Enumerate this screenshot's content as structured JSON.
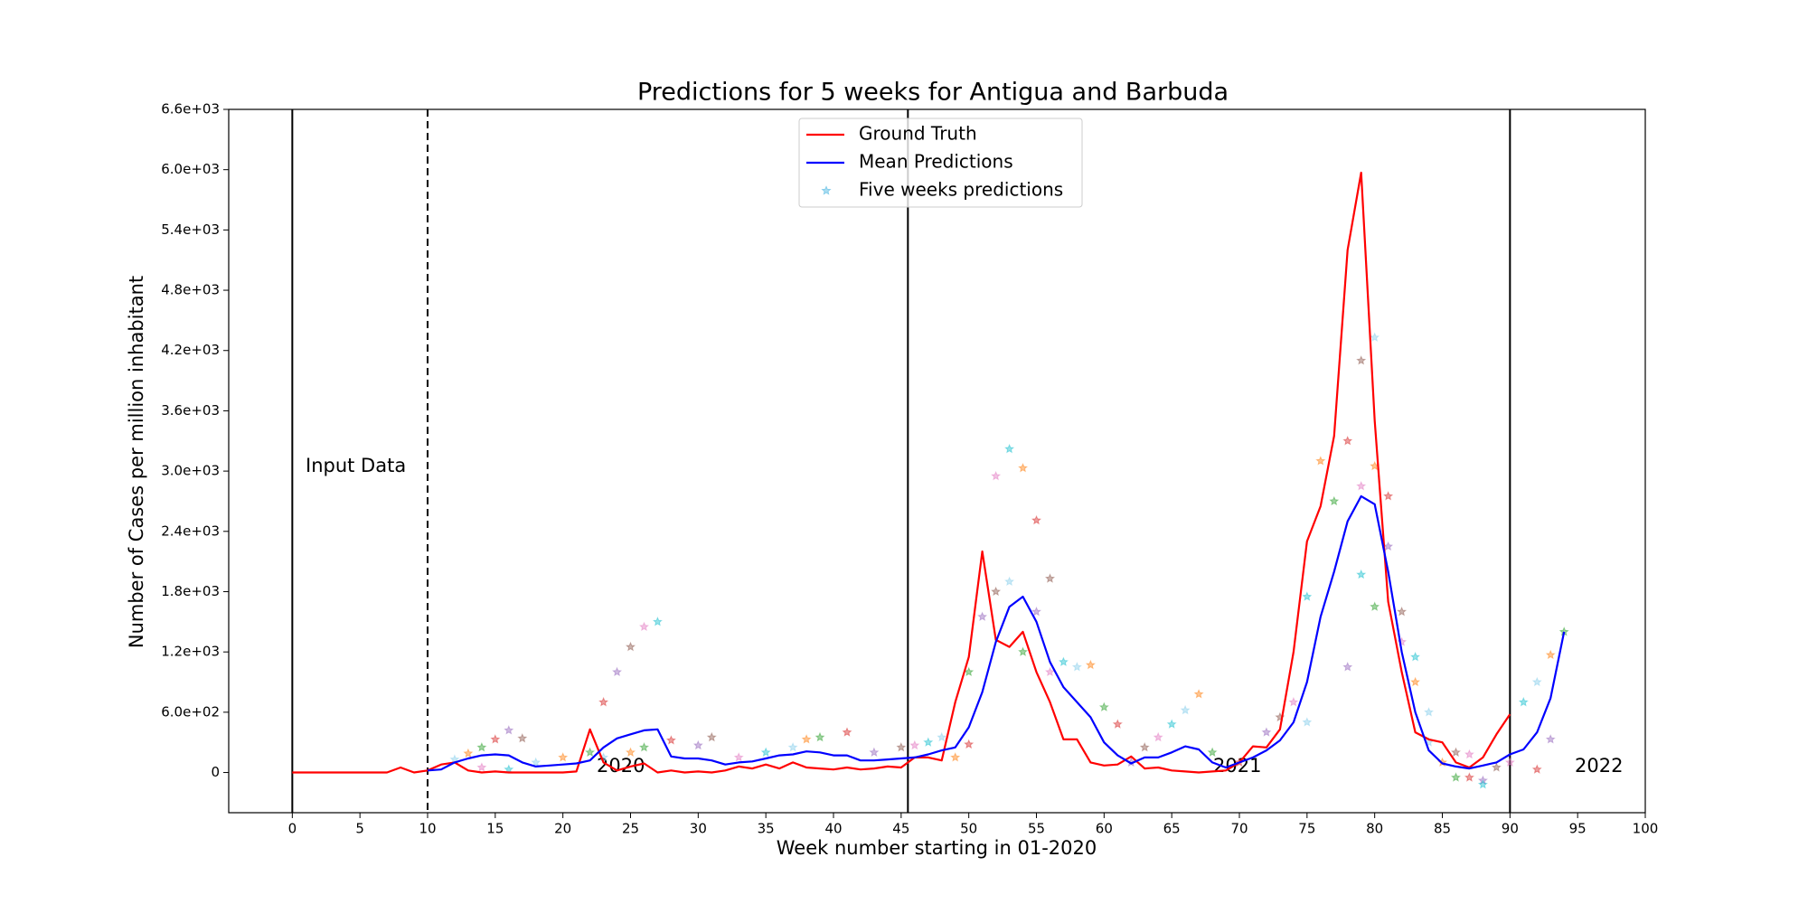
{
  "chart_data": {
    "type": "line",
    "title": "Predictions for 5 weeks for Antigua and Barbuda",
    "x_label": "Week number starting in 01-2020",
    "y_label": "Number of Cases per million inhabitant",
    "xlim": [
      -4.7,
      100
    ],
    "ylim": [
      -400,
      6600
    ],
    "xticks": [
      0,
      5,
      10,
      15,
      20,
      25,
      30,
      35,
      40,
      45,
      50,
      55,
      60,
      65,
      70,
      75,
      80,
      85,
      90,
      95,
      100
    ],
    "yticks": [
      0,
      {
        "value": 600,
        "label": "6.0e+02"
      },
      {
        "value": 1200,
        "label": "1.2e+03"
      },
      {
        "value": 1800,
        "label": "1.8e+03"
      },
      {
        "value": 2400,
        "label": "2.4e+03"
      },
      {
        "value": 3000,
        "label": "3.0e+03"
      },
      {
        "value": 3600,
        "label": "3.6e+03"
      },
      {
        "value": 4200,
        "label": "4.2e+03"
      },
      {
        "value": 4800,
        "label": "4.8e+03"
      },
      {
        "value": 5400,
        "label": "5.4e+03"
      },
      {
        "value": 6000,
        "label": "6.0e+03"
      },
      {
        "value": 6600,
        "label": "6.6e+03"
      }
    ],
    "legend": "upper center",
    "vlines": [
      {
        "x": 0,
        "style": "solid"
      },
      {
        "x": 10,
        "style": "dashed"
      },
      {
        "x": 45.5,
        "style": "solid"
      },
      {
        "x": 90,
        "style": "solid"
      }
    ],
    "annotations": [
      "Input Data",
      "2020",
      "2021",
      "2022"
    ],
    "series": [
      {
        "name": "Ground Truth",
        "color": "#ff0000",
        "marker": "line",
        "x": [
          0,
          1,
          2,
          3,
          4,
          5,
          6,
          7,
          8,
          9,
          10,
          11,
          12,
          13,
          14,
          15,
          16,
          17,
          18,
          19,
          20,
          21,
          22,
          23,
          24,
          25,
          26,
          27,
          28,
          29,
          30,
          31,
          32,
          33,
          34,
          35,
          36,
          37,
          38,
          39,
          40,
          41,
          42,
          43,
          44,
          45,
          46,
          47,
          48,
          49,
          50,
          51,
          52,
          53,
          54,
          55,
          56,
          57,
          58,
          59,
          60,
          61,
          62,
          63,
          64,
          65,
          66,
          67,
          68,
          69,
          70,
          71,
          72,
          73,
          74,
          75,
          76,
          77,
          78,
          79,
          80,
          81,
          82,
          83,
          84,
          85,
          86,
          87,
          88,
          89,
          90
        ],
        "values": [
          0,
          0,
          0,
          0,
          0,
          0,
          0,
          0,
          50,
          0,
          20,
          80,
          100,
          20,
          0,
          10,
          0,
          0,
          0,
          0,
          0,
          10,
          430,
          100,
          20,
          60,
          90,
          0,
          20,
          0,
          10,
          0,
          20,
          60,
          40,
          80,
          40,
          100,
          50,
          40,
          30,
          50,
          30,
          40,
          60,
          50,
          150,
          150,
          120,
          700,
          1150,
          2200,
          1320,
          1250,
          1400,
          1000,
          700,
          330,
          330,
          100,
          70,
          80,
          160,
          40,
          50,
          20,
          10,
          0,
          10,
          20,
          100,
          260,
          250,
          430,
          1200,
          2300,
          2650,
          3350,
          5200,
          5970,
          3500,
          1700,
          1000,
          400,
          330,
          300,
          100,
          50,
          150,
          380,
          580
        ]
      },
      {
        "name": "Mean Predictions",
        "color": "#0000ff",
        "marker": "line",
        "x": [
          10,
          11,
          12,
          13,
          14,
          15,
          16,
          17,
          18,
          19,
          20,
          21,
          22,
          23,
          24,
          25,
          26,
          27,
          28,
          29,
          30,
          31,
          32,
          33,
          34,
          35,
          36,
          37,
          38,
          39,
          40,
          41,
          42,
          43,
          44,
          45,
          46,
          47,
          48,
          49,
          50,
          51,
          52,
          53,
          54,
          55,
          56,
          57,
          58,
          59,
          60,
          61,
          62,
          63,
          64,
          65,
          66,
          67,
          68,
          69,
          70,
          71,
          72,
          73,
          74,
          75,
          76,
          77,
          78,
          79,
          80,
          81,
          82,
          83,
          84,
          85,
          86,
          87,
          88,
          89,
          90,
          91,
          92,
          93,
          94
        ],
        "values": [
          20,
          30,
          100,
          140,
          170,
          180,
          170,
          100,
          60,
          70,
          80,
          90,
          120,
          250,
          340,
          380,
          420,
          430,
          160,
          140,
          140,
          120,
          80,
          100,
          110,
          140,
          170,
          180,
          210,
          200,
          170,
          170,
          120,
          120,
          130,
          140,
          150,
          180,
          220,
          250,
          450,
          800,
          1300,
          1650,
          1750,
          1500,
          1100,
          850,
          700,
          550,
          300,
          170,
          90,
          150,
          150,
          200,
          260,
          230,
          100,
          50,
          100,
          150,
          220,
          320,
          500,
          900,
          1550,
          2000,
          2500,
          2750,
          2670,
          2000,
          1200,
          600,
          220,
          90,
          60,
          40,
          70,
          100,
          180,
          230,
          400,
          740,
          1400
        ]
      },
      {
        "name": "Five weeks predictions",
        "color": "#87ceeb",
        "marker": "star",
        "colors": [
          "#87ceeb",
          "#ff7f0e",
          "#2ca02c",
          "#d62728",
          "#9467bd",
          "#8c564b",
          "#e377c2",
          "#17becf"
        ],
        "x": [
          12,
          13,
          14,
          15,
          16,
          17,
          14,
          16,
          18,
          20,
          22,
          23,
          24,
          25,
          26,
          27,
          23,
          25,
          26,
          28,
          30,
          31,
          33,
          35,
          37,
          38,
          39,
          41,
          43,
          45,
          46,
          47,
          48,
          49,
          50,
          50,
          51,
          52,
          52,
          53,
          53,
          54,
          54,
          55,
          55,
          56,
          56,
          57,
          58,
          59,
          60,
          61,
          62,
          63,
          64,
          65,
          66,
          67,
          68,
          70,
          72,
          73,
          74,
          75,
          75,
          76,
          77,
          78,
          78,
          79,
          79,
          79,
          80,
          80,
          80,
          81,
          81,
          82,
          82,
          83,
          84,
          85,
          86,
          87,
          88,
          89,
          90,
          91,
          92,
          93,
          94,
          92,
          93,
          86,
          87,
          88,
          84,
          83
        ],
        "values": [
          130,
          190,
          250,
          330,
          420,
          340,
          50,
          30,
          100,
          150,
          200,
          700,
          1000,
          1250,
          1450,
          1500,
          150,
          200,
          250,
          320,
          270,
          350,
          150,
          200,
          250,
          330,
          350,
          400,
          200,
          250,
          270,
          300,
          350,
          150,
          1000,
          280,
          1550,
          1800,
          2950,
          3220,
          1900,
          3030,
          1200,
          2510,
          1600,
          1930,
          1000,
          1100,
          1050,
          1070,
          650,
          480,
          100,
          250,
          350,
          480,
          620,
          780,
          200,
          100,
          400,
          550,
          700,
          1750,
          500,
          3100,
          2700,
          3300,
          1050,
          4100,
          2850,
          1970,
          4330,
          3050,
          1650,
          2750,
          2250,
          1600,
          1300,
          1150,
          600,
          100,
          -50,
          -50,
          -80,
          50,
          100,
          700,
          900,
          1170,
          1400,
          30,
          330,
          200,
          180,
          -120,
          300,
          900
        ]
      }
    ]
  }
}
